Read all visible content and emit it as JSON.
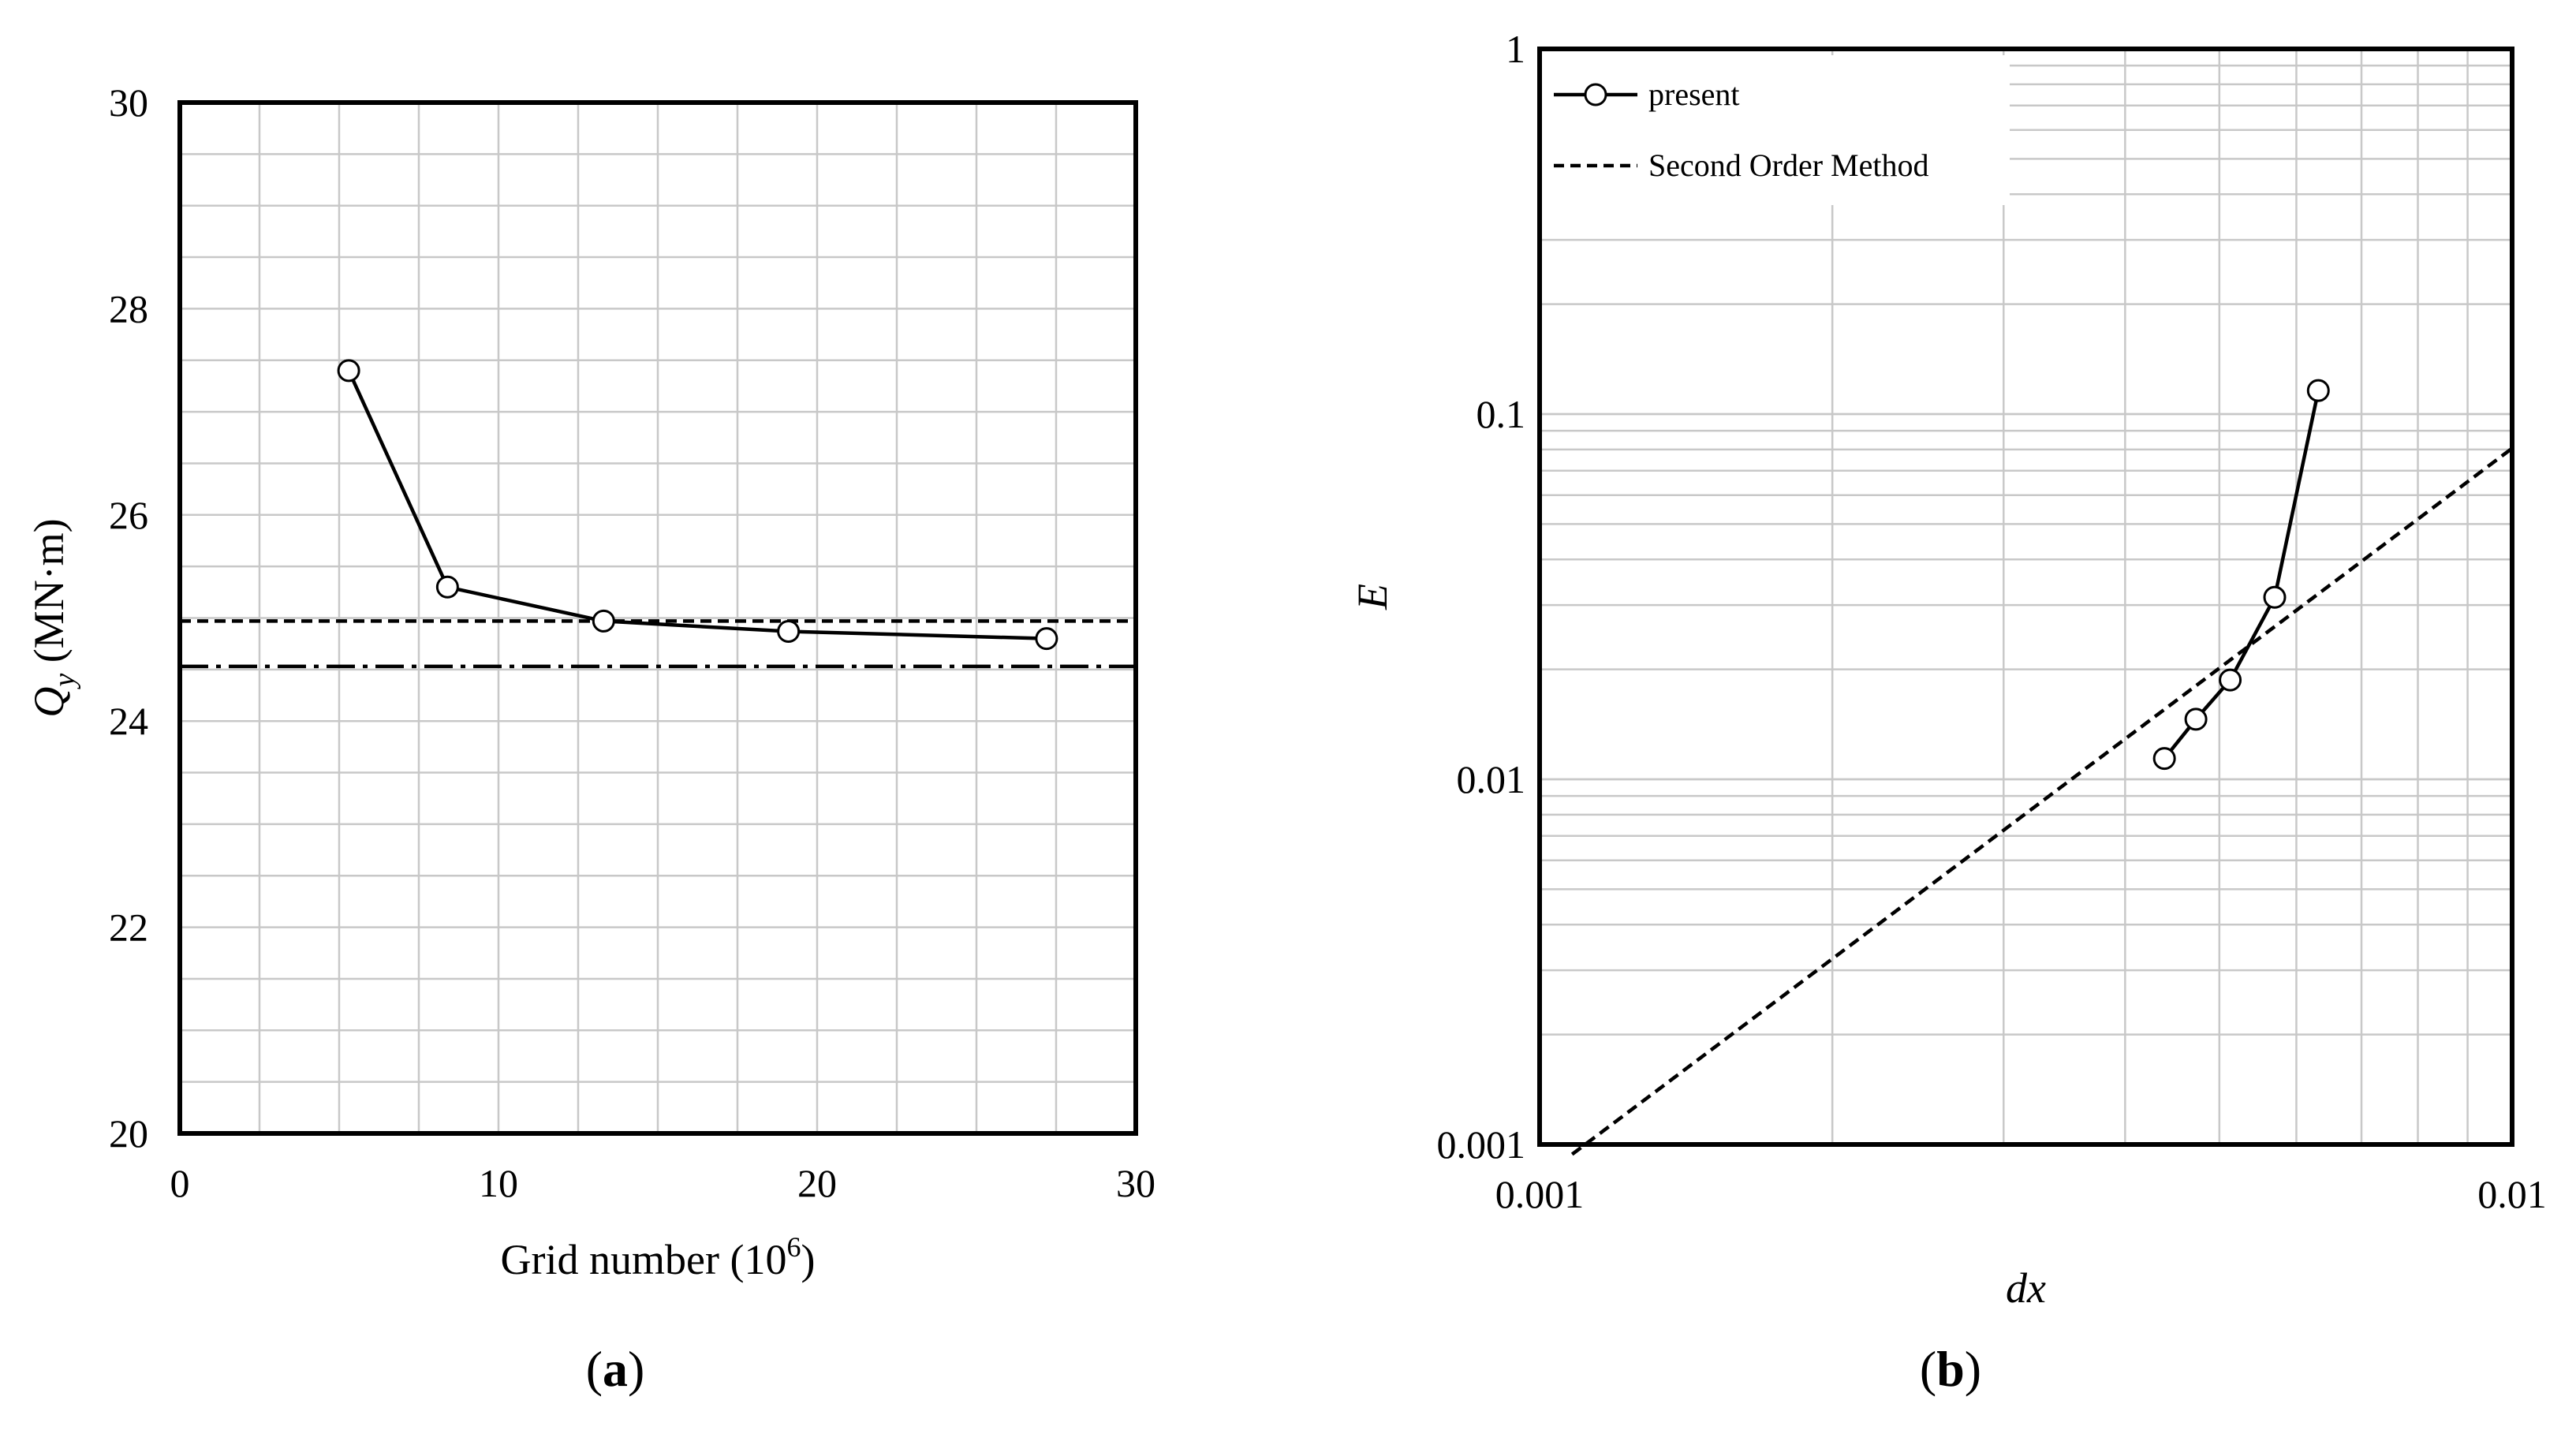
{
  "chart_data": [
    {
      "panel_label": "a",
      "type": "line",
      "xlabel": {
        "text": "Grid number (10",
        "sup": "6",
        "close": ")"
      },
      "ylabel": {
        "base": "Q",
        "sub": "y",
        "unit": "(MN·m)"
      },
      "xlim": [
        0,
        30
      ],
      "ylim": [
        20,
        30
      ],
      "xticks": [
        "0",
        "10",
        "20",
        "30"
      ],
      "yticks": [
        "20",
        "22",
        "24",
        "26",
        "28",
        "30"
      ],
      "x_minor_step": 2.5,
      "y_minor_step": 0.5,
      "grid": true,
      "series": [
        {
          "style": "solid-circle",
          "x": [
            5.3,
            8.4,
            13.3,
            19.1,
            27.2
          ],
          "y": [
            27.4,
            25.3,
            24.97,
            24.87,
            24.8
          ]
        }
      ],
      "reference_lines": [
        {
          "style": "dashed",
          "y": 24.97
        },
        {
          "style": "dash-dot",
          "y": 24.53
        }
      ]
    },
    {
      "panel_label": "b",
      "type": "line",
      "xscale": "log",
      "yscale": "log",
      "xlabel": "dx",
      "ylabel": "E",
      "xlim": [
        0.001,
        0.01
      ],
      "ylim": [
        0.001,
        1
      ],
      "xticks": [
        "0.001",
        "0.01"
      ],
      "yticks": [
        "0.001",
        "0.01",
        "0.1",
        "1"
      ],
      "grid": true,
      "legend": {
        "position": "top-left",
        "entries": [
          {
            "label": "present",
            "style": "solid-circle"
          },
          {
            "label": "Second Order Method",
            "style": "dashed"
          }
        ]
      },
      "series": [
        {
          "name": "present",
          "style": "solid-circle",
          "x": [
            0.00439,
            0.00473,
            0.00513,
            0.0057,
            0.00632
          ],
          "y": [
            0.0114,
            0.0146,
            0.0187,
            0.0315,
            0.116
          ]
        },
        {
          "name": "Second Order Method",
          "style": "dashed",
          "x": [
            0.00108,
            0.01
          ],
          "y": [
            0.00094,
            0.0806
          ]
        }
      ]
    }
  ]
}
